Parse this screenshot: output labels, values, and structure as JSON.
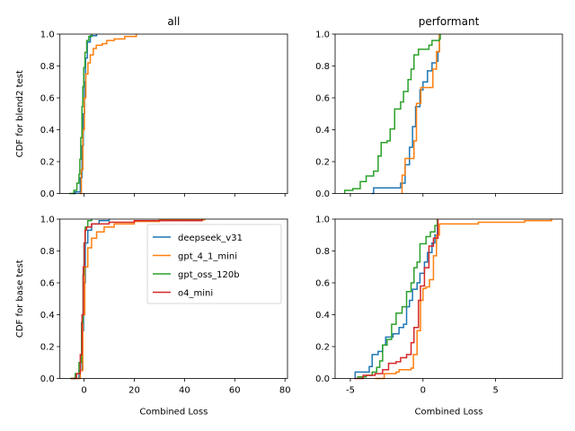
{
  "chart_data": {
    "type": "line",
    "step": true,
    "grid": false,
    "column_titles": [
      "all",
      "performant"
    ],
    "row_ylabels": [
      "CDF for blend2 test",
      "CDF for base test"
    ],
    "xlabel": "Combined Loss",
    "ylim": [
      0,
      1
    ],
    "yticks": [
      "0.0",
      "0.2",
      "0.4",
      "0.6",
      "0.8",
      "1.0"
    ],
    "columns": [
      {
        "xlim": [
          -9.6,
          81
        ],
        "xticks": [
          0,
          20,
          40,
          60,
          80
        ]
      },
      {
        "xlim": [
          -6.05,
          9.6
        ],
        "xticks": [
          -5,
          0,
          5
        ]
      }
    ],
    "colors": {
      "deepseek_v31": "#1f77b4",
      "gpt_4_1_mini": "#ff7f0e",
      "gpt_oss_120b": "#2ca02c",
      "o4_mini": "#d62728"
    },
    "legend": {
      "placement": "upper-right of bottom-left panel",
      "entries": [
        "deepseek_v31",
        "gpt_4_1_mini",
        "gpt_oss_120b",
        "o4_mini"
      ]
    },
    "panels": [
      {
        "row": 0,
        "col": 0,
        "series": [
          {
            "name": "deepseek_v31",
            "points": [
              [
                -4.5,
                0
              ],
              [
                -3.5,
                0.01
              ],
              [
                -1.5,
                0.1
              ],
              [
                -0.8,
                0.3
              ],
              [
                -0.3,
                0.5
              ],
              [
                0.2,
                0.7
              ],
              [
                0.6,
                0.85
              ],
              [
                1.3,
                0.95
              ],
              [
                2.5,
                0.99
              ],
              [
                5.0,
                1
              ]
            ]
          },
          {
            "name": "gpt_4_1_mini",
            "points": [
              [
                -1.67,
                0
              ],
              [
                -1.07,
                0.15
              ],
              [
                -0.48,
                0.4
              ],
              [
                0.12,
                0.6
              ],
              [
                0.71,
                0.75
              ],
              [
                1.55,
                0.82
              ],
              [
                2.5,
                0.87
              ],
              [
                3.69,
                0.91
              ],
              [
                4.88,
                0.93
              ],
              [
                7.26,
                0.94
              ],
              [
                9.05,
                0.96
              ],
              [
                12.0,
                0.97
              ],
              [
                16.2,
                0.985
              ],
              [
                20.8,
                1
              ]
            ]
          },
          {
            "name": "gpt_oss_120b",
            "points": [
              [
                -5.83,
                0
              ],
              [
                -4.05,
                0.02
              ],
              [
                -2.86,
                0.065
              ],
              [
                -2.02,
                0.12
              ],
              [
                -1.67,
                0.215
              ],
              [
                -1.31,
                0.35
              ],
              [
                -0.83,
                0.545
              ],
              [
                -0.48,
                0.67
              ],
              [
                -0.12,
                0.79
              ],
              [
                0.36,
                0.885
              ],
              [
                1.07,
                0.96
              ],
              [
                1.9,
                0.985
              ],
              [
                3.1,
                1
              ]
            ]
          }
        ]
      },
      {
        "row": 0,
        "col": 1,
        "series": [
          {
            "name": "deepseek_v31",
            "points": [
              [
                -3.53,
                0
              ],
              [
                -3.4,
                0.035
              ],
              [
                -1.65,
                0.035
              ],
              [
                -1.54,
                0.065
              ],
              [
                -1.23,
                0.18
              ],
              [
                -0.93,
                0.29
              ],
              [
                -0.72,
                0.42
              ],
              [
                -0.51,
                0.545
              ],
              [
                -0.21,
                0.65
              ],
              [
                0,
                0.7
              ],
              [
                0.31,
                0.77
              ],
              [
                0.62,
                0.82
              ],
              [
                0.93,
                0.83
              ],
              [
                1.03,
                0.89
              ],
              [
                1.13,
                1
              ]
            ]
          },
          {
            "name": "gpt_4_1_mini",
            "points": [
              [
                -1.44,
                0
              ],
              [
                -1.44,
                0.115
              ],
              [
                -1.23,
                0.22
              ],
              [
                -0.62,
                0.33
              ],
              [
                -0.45,
                0.565
              ],
              [
                -0.15,
                0.665
              ],
              [
                0.68,
                0.78
              ],
              [
                0.93,
                0.89
              ],
              [
                1.13,
                1
              ]
            ]
          },
          {
            "name": "gpt_oss_120b",
            "points": [
              [
                -5.39,
                0
              ],
              [
                -5.39,
                0.02
              ],
              [
                -4.83,
                0.03
              ],
              [
                -4.32,
                0.075
              ],
              [
                -3.91,
                0.11
              ],
              [
                -3.4,
                0.14
              ],
              [
                -3.09,
                0.235
              ],
              [
                -2.88,
                0.32
              ],
              [
                -2.47,
                0.33
              ],
              [
                -2.26,
                0.405
              ],
              [
                -1.95,
                0.53
              ],
              [
                -1.54,
                0.575
              ],
              [
                -1.34,
                0.64
              ],
              [
                -1.03,
                0.715
              ],
              [
                -0.82,
                0.78
              ],
              [
                -0.62,
                0.87
              ],
              [
                -0.31,
                0.905
              ],
              [
                0.1,
                0.905
              ],
              [
                0.41,
                0.93
              ],
              [
                0.62,
                0.96
              ],
              [
                1.13,
                0.97
              ],
              [
                1.19,
                1
              ]
            ]
          }
        ]
      },
      {
        "row": 1,
        "col": 0,
        "series": [
          {
            "name": "deepseek_v31",
            "points": [
              [
                -4.5,
                0
              ],
              [
                -2,
                0.05
              ],
              [
                -0.8,
                0.3
              ],
              [
                -0.2,
                0.6
              ],
              [
                0.5,
                0.85
              ],
              [
                1.5,
                0.93
              ],
              [
                3,
                0.97
              ],
              [
                6,
                0.99
              ],
              [
                10,
                1
              ]
            ]
          },
          {
            "name": "gpt_4_1_mini",
            "points": [
              [
                -3,
                0
              ],
              [
                -1.5,
                0.05
              ],
              [
                -0.5,
                0.4
              ],
              [
                0.3,
                0.7
              ],
              [
                1.5,
                0.82
              ],
              [
                3,
                0.88
              ],
              [
                5,
                0.92
              ],
              [
                8,
                0.95
              ],
              [
                12,
                0.97
              ],
              [
                20,
                0.985
              ],
              [
                30,
                0.995
              ],
              [
                48,
                1
              ]
            ]
          },
          {
            "name": "gpt_oss_120b",
            "points": [
              [
                -5.5,
                0
              ],
              [
                -3.5,
                0.03
              ],
              [
                -2,
                0.1
              ],
              [
                -1,
                0.35
              ],
              [
                -0.4,
                0.65
              ],
              [
                0,
                0.85
              ],
              [
                0.5,
                0.95
              ],
              [
                1.5,
                0.99
              ],
              [
                3,
                1
              ]
            ]
          },
          {
            "name": "o4_mini",
            "points": [
              [
                -5.24,
                0
              ],
              [
                -3,
                0.03
              ],
              [
                -1.5,
                0.15
              ],
              [
                -0.8,
                0.4
              ],
              [
                -0.3,
                0.7
              ],
              [
                0.1,
                0.85
              ],
              [
                0.4,
                0.93
              ],
              [
                1,
                0.95
              ],
              [
                3,
                0.97
              ],
              [
                10,
                0.98
              ],
              [
                20,
                0.99
              ],
              [
                47,
                1
              ]
            ]
          }
        ]
      },
      {
        "row": 1,
        "col": 1,
        "series": [
          {
            "name": "deepseek_v31",
            "points": [
              [
                -4.67,
                0
              ],
              [
                -4.67,
                0.04
              ],
              [
                -4.12,
                0.04
              ],
              [
                -3.7,
                0.075
              ],
              [
                -3.5,
                0.15
              ],
              [
                -3.09,
                0.17
              ],
              [
                -2.78,
                0.21
              ],
              [
                -2.57,
                0.26
              ],
              [
                -2.06,
                0.28
              ],
              [
                -1.65,
                0.32
              ],
              [
                -1.34,
                0.34
              ],
              [
                -1.13,
                0.45
              ],
              [
                -0.93,
                0.49
              ],
              [
                -0.72,
                0.56
              ],
              [
                -0.41,
                0.6
              ],
              [
                -0.21,
                0.66
              ],
              [
                0.1,
                0.73
              ],
              [
                0.31,
                0.79
              ],
              [
                0.62,
                0.85
              ],
              [
                0.82,
                0.9
              ],
              [
                0.99,
                1
              ]
            ]
          },
          {
            "name": "gpt_4_1_mini",
            "points": [
              [
                -3.3,
                0
              ],
              [
                -2.67,
                0.03
              ],
              [
                -1.85,
                0.04
              ],
              [
                -1.65,
                0.055
              ],
              [
                -0.82,
                0.065
              ],
              [
                -0.66,
                0.15
              ],
              [
                -0.41,
                0.3
              ],
              [
                -0.17,
                0.49
              ],
              [
                0,
                0.565
              ],
              [
                0.21,
                0.575
              ],
              [
                0.45,
                0.62
              ],
              [
                0.72,
                0.77
              ],
              [
                0.93,
                0.9
              ],
              [
                1.13,
                0.97
              ],
              [
                3.81,
                0.98
              ],
              [
                7.0,
                0.99
              ],
              [
                8.85,
                1
              ]
            ]
          },
          {
            "name": "gpt_oss_120b",
            "points": [
              [
                -4.53,
                0.01
              ],
              [
                -3.91,
                0.02
              ],
              [
                -3.5,
                0.04
              ],
              [
                -3.19,
                0.07
              ],
              [
                -2.98,
                0.11
              ],
              [
                -2.78,
                0.21
              ],
              [
                -2.47,
                0.245
              ],
              [
                -2.16,
                0.34
              ],
              [
                -1.85,
                0.41
              ],
              [
                -1.44,
                0.45
              ],
              [
                -1.13,
                0.545
              ],
              [
                -0.82,
                0.6
              ],
              [
                -0.62,
                0.695
              ],
              [
                -0.41,
                0.73
              ],
              [
                -0.21,
                0.845
              ],
              [
                0.21,
                0.89
              ],
              [
                0.51,
                0.92
              ],
              [
                0.82,
                0.96
              ],
              [
                0.99,
                1
              ]
            ]
          },
          {
            "name": "o4_mini",
            "points": [
              [
                -4.73,
                0
              ],
              [
                -4.12,
                0.02
              ],
              [
                -3.3,
                0.03
              ],
              [
                -2.78,
                0.055
              ],
              [
                -2.37,
                0.095
              ],
              [
                -1.85,
                0.105
              ],
              [
                -1.54,
                0.13
              ],
              [
                -1.13,
                0.15
              ],
              [
                -0.82,
                0.225
              ],
              [
                -0.62,
                0.32
              ],
              [
                -0.31,
                0.49
              ],
              [
                -0.17,
                0.58
              ],
              [
                0.1,
                0.695
              ],
              [
                0.41,
                0.83
              ],
              [
                0.72,
                0.88
              ],
              [
                1.03,
                1
              ]
            ]
          }
        ]
      }
    ]
  }
}
